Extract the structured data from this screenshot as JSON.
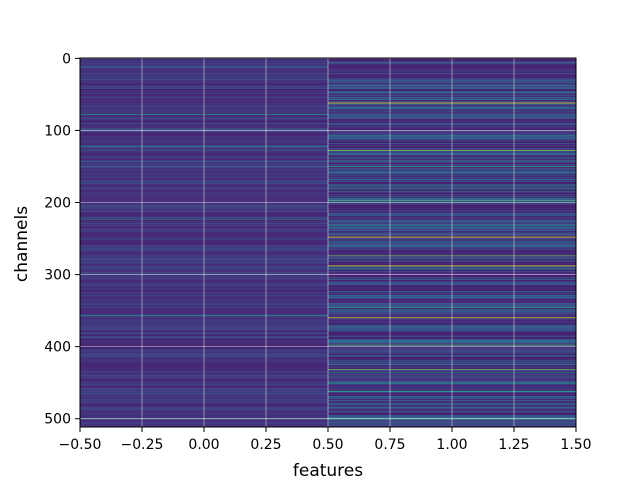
{
  "chart_data": {
    "type": "heatmap",
    "title": "",
    "xlabel": "features",
    "ylabel": "channels",
    "colormap": "viridis",
    "grid": true,
    "xlim": [
      -0.5,
      1.5
    ],
    "ylim": [
      511.5,
      -0.5
    ],
    "x_ticks": [
      -0.5,
      -0.25,
      0.0,
      0.25,
      0.5,
      0.75,
      1.0,
      1.25,
      1.5
    ],
    "x_tick_labels": [
      "−0.50",
      "−0.25",
      "0.00",
      "0.25",
      "0.50",
      "0.75",
      "1.00",
      "1.25",
      "1.50"
    ],
    "y_ticks": [
      0,
      100,
      200,
      300,
      400,
      500
    ],
    "y_tick_labels": [
      "0",
      "100",
      "200",
      "300",
      "400",
      "500"
    ],
    "columns": [
      0,
      1
    ],
    "rows": 512,
    "column_0": {
      "base_level": 0.14,
      "noise": 0.09,
      "highlights": [
        {
          "row": 12,
          "level": 0.4
        },
        {
          "row": 78,
          "level": 0.55
        },
        {
          "row": 122,
          "level": 0.5
        },
        {
          "row": 143,
          "level": 0.38
        },
        {
          "row": 223,
          "level": 0.5
        },
        {
          "row": 357,
          "level": 0.5
        },
        {
          "row": 402,
          "level": 0.0
        },
        {
          "row": 500,
          "level": 0.42
        }
      ]
    },
    "column_1": {
      "base_level": 0.16,
      "noise": 0.2,
      "highlights": [
        {
          "row": 62,
          "level": 0.95
        },
        {
          "row": 128,
          "level": 0.8
        },
        {
          "row": 150,
          "level": 0.62
        },
        {
          "row": 180,
          "level": 0.55
        },
        {
          "row": 197,
          "level": 0.7
        },
        {
          "row": 248,
          "level": 0.98
        },
        {
          "row": 274,
          "level": 0.75
        },
        {
          "row": 288,
          "level": 0.95
        },
        {
          "row": 346,
          "level": 0.62
        },
        {
          "row": 360,
          "level": 0.92
        },
        {
          "row": 398,
          "level": 0.7
        },
        {
          "row": 432,
          "level": 0.78
        },
        {
          "row": 462,
          "level": 0.62
        },
        {
          "row": 500,
          "level": 0.6
        }
      ]
    }
  }
}
